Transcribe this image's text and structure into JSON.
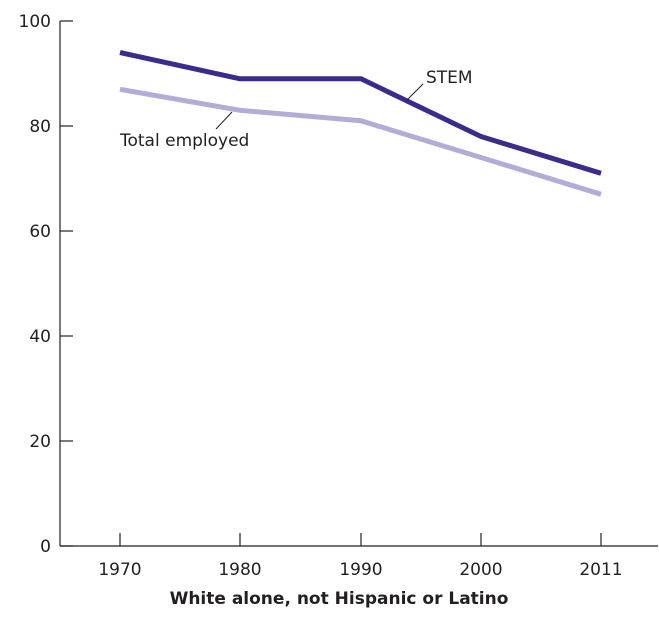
{
  "chart_data": {
    "type": "line",
    "title": "White alone, not Hispanic or Latino",
    "xlabel": "",
    "ylabel": "",
    "x": [
      "1970",
      "1980",
      "1990",
      "2000",
      "2011"
    ],
    "ylim": [
      0,
      100
    ],
    "yticks": [
      "0",
      "20",
      "40",
      "60",
      "80",
      "100"
    ],
    "grid": false,
    "series": [
      {
        "name": "STEM",
        "values": [
          94,
          89,
          89,
          78,
          71
        ],
        "color": "#3d2a8a"
      },
      {
        "name": "Total employed",
        "values": [
          87,
          83,
          81,
          74,
          67
        ],
        "color": "#b2acd6"
      }
    ]
  }
}
